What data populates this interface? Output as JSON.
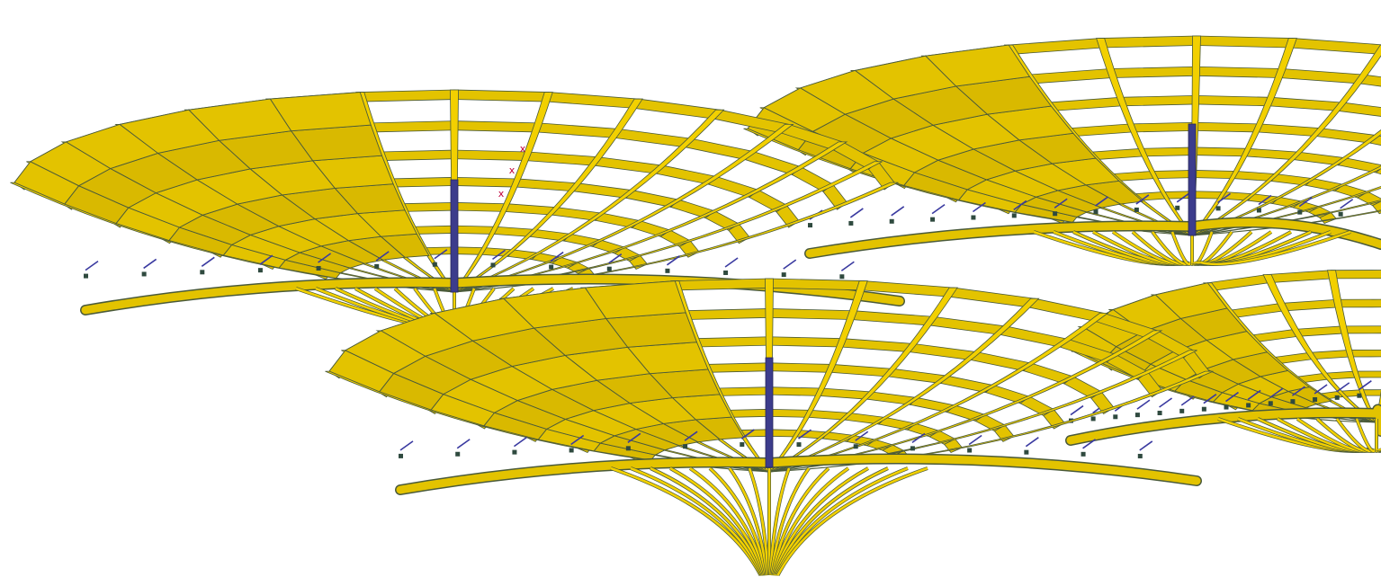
{
  "viewport": {
    "background": "#ffffff"
  },
  "model": {
    "member_fill": "#e3c300",
    "member_fill_alt": "#f2d000",
    "member_edge": "#4a5a3a",
    "column_color": "#3c3c8c",
    "bracing_color": "#3a3aa0",
    "node_color": "#2f4a3f",
    "marker_color": "#c0003a",
    "units": [
      {
        "name": "umbrella-left",
        "column_count": 1
      },
      {
        "name": "umbrella-center",
        "column_count": 1
      },
      {
        "name": "umbrella-right-back",
        "column_count": 1
      },
      {
        "name": "umbrella-right-front",
        "column_count": 0
      }
    ],
    "markers": [
      "x",
      "x",
      "x"
    ]
  }
}
